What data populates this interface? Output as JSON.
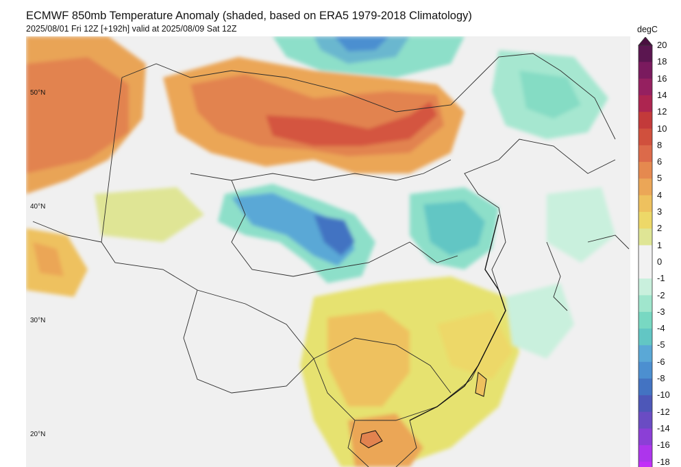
{
  "title": "ECMWF 850mb Temperature Anomaly (shaded, based on ERA5 1979-2018 Climatology)",
  "subtitle": "2025/08/01 Fri 12Z [+192h] valid at 2025/08/09 Sat 12Z",
  "latitude_labels": [
    "50°N",
    "40°N",
    "30°N",
    "20°N"
  ],
  "colorbar": {
    "unit": "degC",
    "ticks": [
      "20",
      "18",
      "16",
      "14",
      "12",
      "10",
      "8",
      "6",
      "5",
      "4",
      "3",
      "2",
      "1",
      "0",
      "-1",
      "-2",
      "-3",
      "-4",
      "-5",
      "-6",
      "-8",
      "-10",
      "-12",
      "-14",
      "-16",
      "-18"
    ],
    "colors": [
      "#5b1650",
      "#7a1a5e",
      "#952060",
      "#ad2550",
      "#c33a3a",
      "#d0503d",
      "#dc6a4a",
      "#e5894f",
      "#eba657",
      "#eec15e",
      "#edd868",
      "#dfe595",
      "#f2f2f2",
      "#f2f2f2",
      "#c9f0dd",
      "#a0e6cd",
      "#78d8c2",
      "#62c6c4",
      "#5aa8d6",
      "#4c8fd0",
      "#4373c2",
      "#4d57b8",
      "#6a4cc3",
      "#8b3fd6",
      "#ad35ec",
      "#c22ff8"
    ],
    "top_arrow_color": "#4a0f40"
  },
  "map": {
    "background_color": "#f0f0f0",
    "border_color": "#2a2a2a"
  }
}
